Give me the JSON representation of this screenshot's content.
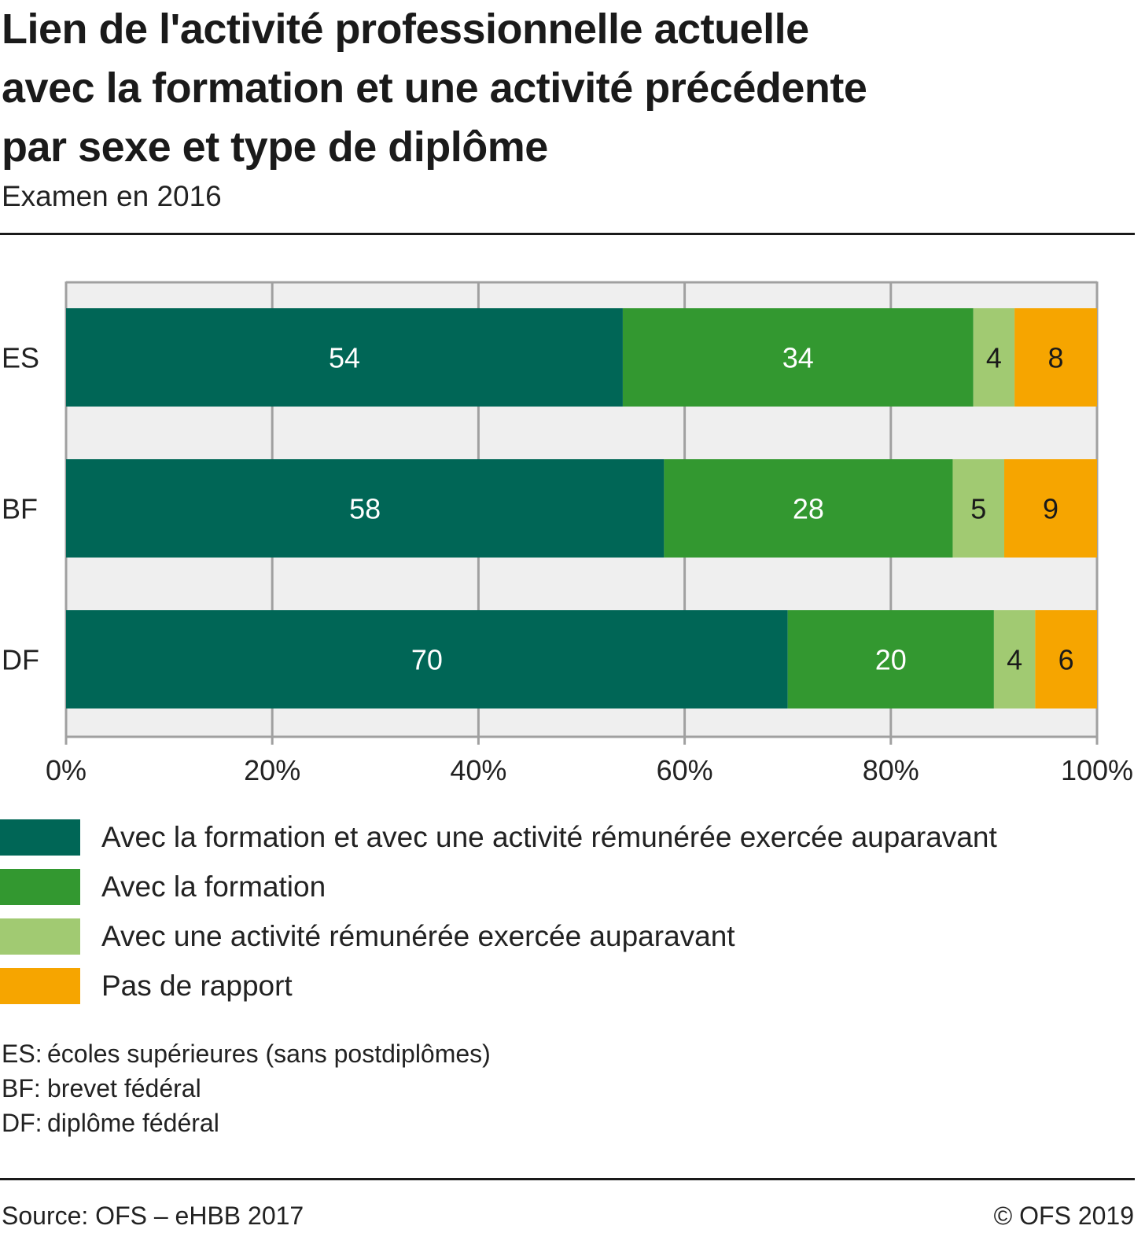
{
  "header": {
    "title_lines": [
      "Lien de l'activité professionnelle actuelle",
      "avec la formation et une activité précédente",
      "par sexe et type de diplôme"
    ],
    "subtitle": "Examen en 2016"
  },
  "chart_data": {
    "type": "bar",
    "orientation": "horizontal",
    "stacked": true,
    "title": "Lien de l'activité professionnelle actuelle avec la formation et une activité précédente par sexe et type de diplôme",
    "subtitle": "Examen en 2016",
    "categories": [
      "ES",
      "BF",
      "DF"
    ],
    "series": [
      {
        "name": "Avec la formation et avec une activité rémunérée exercée auparavant",
        "color": "#006656",
        "label_color": "#ffffff",
        "values": [
          54,
          58,
          70
        ]
      },
      {
        "name": "Avec la formation",
        "color": "#339830",
        "label_color": "#ffffff",
        "values": [
          34,
          28,
          20
        ]
      },
      {
        "name": "Avec une activité rémunérée exercée auparavant",
        "color": "#a1ca72",
        "label_color": "#1a1a1a",
        "values": [
          4,
          5,
          4
        ]
      },
      {
        "name": "Pas de rapport",
        "color": "#f6a500",
        "label_color": "#1a1a1a",
        "values": [
          8,
          9,
          6
        ]
      }
    ],
    "xlabel": "",
    "ylabel": "",
    "xlim": [
      0,
      100
    ],
    "x_ticks": [
      0,
      20,
      40,
      60,
      80,
      100
    ],
    "x_tick_labels": [
      "0%",
      "20%",
      "40%",
      "60%",
      "80%",
      "100%"
    ],
    "grid": true,
    "plot_background": "#efefef",
    "grid_color": "#a0a0a0",
    "legend_position": "bottom"
  },
  "notes": [
    {
      "key": "ES:",
      "text": "écoles supérieures (sans postdiplômes)"
    },
    {
      "key": "BF:",
      "text": "brevet fédéral"
    },
    {
      "key": "DF:",
      "text": "diplôme fédéral"
    }
  ],
  "footer": {
    "source": "Source: OFS – eHBB 2017",
    "copyright": "© OFS 2019"
  }
}
